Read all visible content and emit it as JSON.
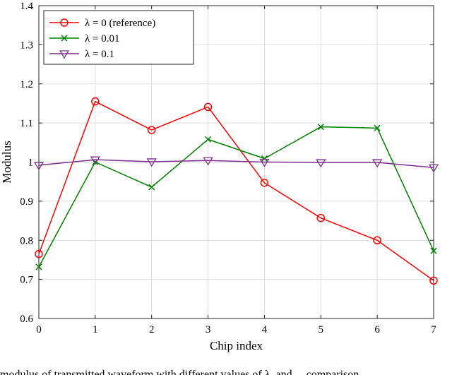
{
  "chart_data": {
    "type": "line",
    "xlabel": "Chip index",
    "ylabel": "Modulus",
    "xlim": [
      0,
      7
    ],
    "ylim": [
      0.6,
      1.4
    ],
    "xticks": [
      "0",
      "1",
      "2",
      "3",
      "4",
      "5",
      "6",
      "7"
    ],
    "yticks": [
      "0.6",
      "0.7",
      "0.8",
      "0.9",
      "1",
      "1.1",
      "1.2",
      "1.3",
      "1.4"
    ],
    "grid": true,
    "legend_position": "top-left",
    "x": [
      0,
      1,
      2,
      3,
      4,
      5,
      6,
      7
    ],
    "series": [
      {
        "name": "λ = 0 (reference)",
        "marker": "circle",
        "color": "#ff0000",
        "values": [
          0.765,
          1.155,
          1.082,
          1.141,
          0.947,
          0.857,
          0.8,
          0.697
        ]
      },
      {
        "name": "λ = 0.01",
        "marker": "x",
        "color": "#008000",
        "values": [
          0.732,
          1.0,
          0.936,
          1.058,
          1.009,
          1.09,
          1.087,
          0.773
        ]
      },
      {
        "name": "λ = 0.1",
        "marker": "triangle-down",
        "color": "#7e2f8e",
        "values": [
          0.992,
          1.006,
          1.001,
          1.004,
          1.0,
          0.999,
          0.999,
          0.986
        ]
      }
    ]
  },
  "caption": "modulus of transmitted waveform with different values of λ, and ... comparison"
}
